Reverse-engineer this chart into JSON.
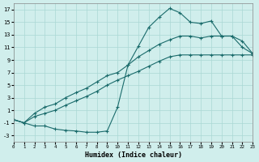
{
  "xlabel": "Humidex (Indice chaleur)",
  "bg_color": "#d0eeec",
  "grid_color": "#aad8d4",
  "line_color": "#1a6b6b",
  "xlim": [
    0,
    23
  ],
  "ylim": [
    -4,
    18
  ],
  "xticks": [
    0,
    1,
    2,
    3,
    4,
    5,
    6,
    7,
    8,
    9,
    10,
    11,
    12,
    13,
    14,
    15,
    16,
    17,
    18,
    19,
    20,
    21,
    22,
    23
  ],
  "yticks": [
    -3,
    -1,
    1,
    3,
    5,
    7,
    9,
    11,
    13,
    15,
    17
  ],
  "line1_x": [
    0,
    1,
    2,
    3,
    4,
    5,
    6,
    7,
    8,
    9,
    10,
    11,
    12,
    13,
    14,
    15,
    16,
    17,
    18,
    19,
    20,
    21,
    22,
    23
  ],
  "line1_y": [
    -0.5,
    -1.0,
    -1.5,
    -1.5,
    -2.0,
    -2.2,
    -2.3,
    -2.5,
    -2.5,
    -2.3,
    1.5,
    8.2,
    11.2,
    14.2,
    15.8,
    17.2,
    16.5,
    15.0,
    14.8,
    15.2,
    12.8,
    12.8,
    11.0,
    10.0
  ],
  "line2_x": [
    0,
    1,
    2,
    3,
    4,
    5,
    6,
    7,
    8,
    9,
    10,
    11,
    12,
    13,
    14,
    15,
    16,
    17,
    18,
    19,
    20,
    21,
    22,
    23
  ],
  "line2_y": [
    -0.5,
    -1.0,
    0.5,
    1.5,
    2.0,
    3.0,
    3.8,
    4.5,
    5.5,
    6.5,
    7.0,
    8.2,
    9.5,
    10.5,
    11.5,
    12.2,
    12.8,
    12.8,
    12.5,
    12.8,
    12.8,
    12.8,
    12.0,
    10.0
  ],
  "line3_x": [
    0,
    1,
    2,
    3,
    4,
    5,
    6,
    7,
    8,
    9,
    10,
    11,
    12,
    13,
    14,
    15,
    16,
    17,
    18,
    19,
    20,
    21,
    22,
    23
  ],
  "line3_y": [
    -0.5,
    -1.0,
    0.0,
    0.5,
    1.0,
    1.8,
    2.5,
    3.2,
    4.0,
    5.0,
    5.8,
    6.5,
    7.2,
    8.0,
    8.8,
    9.5,
    9.8,
    9.8,
    9.8,
    9.8,
    9.8,
    9.8,
    9.8,
    9.8
  ]
}
